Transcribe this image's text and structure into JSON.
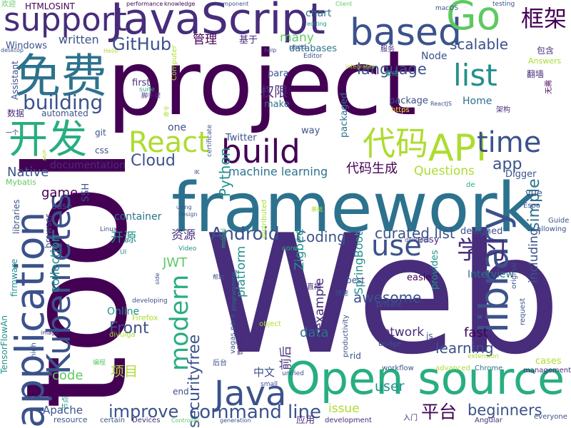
{
  "palette": {
    "c1": "#440154",
    "c2": "#472d7b",
    "c3": "#3b528b",
    "c4": "#2c728e",
    "c5": "#21918c",
    "c6": "#28ae80",
    "c7": "#5ec962",
    "c8": "#addc30",
    "c9": "#fde725"
  },
  "words": [
    {
      "text": "project",
      "color": "c1"
    },
    {
      "text": "Web",
      "color": "c2"
    },
    {
      "text": "framework",
      "color": "c4"
    },
    {
      "text": "tool",
      "color": "c1"
    },
    {
      "text": "JavaScript",
      "color": "c2"
    },
    {
      "text": "application",
      "color": "c3"
    },
    {
      "text": "Open source",
      "color": "c6"
    },
    {
      "text": "Kubernetes",
      "color": "c3"
    },
    {
      "text": "based",
      "color": "c3"
    },
    {
      "text": "library",
      "color": "c3"
    },
    {
      "text": "免费",
      "color": "c4"
    },
    {
      "text": "开发",
      "color": "c6"
    },
    {
      "text": "support",
      "color": "c2"
    },
    {
      "text": "Go",
      "color": "c7"
    },
    {
      "text": "build",
      "color": "c1"
    },
    {
      "text": "API",
      "color": "c8"
    },
    {
      "text": "Java",
      "color": "c3"
    },
    {
      "text": "list",
      "color": "c5"
    },
    {
      "text": "代码",
      "color": "c8"
    },
    {
      "text": "time",
      "color": "c3"
    },
    {
      "text": "React",
      "color": "c8"
    },
    {
      "text": "use",
      "color": "c3"
    },
    {
      "text": "modern",
      "color": "c6"
    },
    {
      "text": "框架",
      "color": "c1"
    },
    {
      "text": "学习",
      "color": "c2"
    },
    {
      "text": "GitHub",
      "color": "c3"
    },
    {
      "text": "building",
      "color": "c3"
    },
    {
      "text": "Android",
      "color": "c3"
    },
    {
      "text": "securityfree",
      "color": "c3"
    },
    {
      "text": "simple",
      "color": "c4"
    },
    {
      "text": "command line",
      "color": "c3"
    },
    {
      "text": "improve",
      "color": "c3"
    },
    {
      "text": "平台",
      "color": "c1"
    },
    {
      "text": "language",
      "color": "c3"
    },
    {
      "text": "Cloud",
      "color": "c3"
    },
    {
      "text": "Front",
      "color": "c3"
    },
    {
      "text": "app",
      "color": "c3"
    },
    {
      "text": "beginners",
      "color": "c3"
    },
    {
      "text": "curated list",
      "color": "c3"
    },
    {
      "text": "awesome",
      "color": "c3"
    },
    {
      "text": "Coding",
      "color": "c3"
    },
    {
      "text": "Native",
      "color": "c3"
    },
    {
      "text": "learning",
      "color": "c3"
    },
    {
      "text": "scalable",
      "color": "c3"
    },
    {
      "text": "written",
      "color": "c3"
    },
    {
      "text": "Python",
      "color": "c5"
    },
    {
      "text": "SpringBoot",
      "color": "c5"
    },
    {
      "text": "代码生成",
      "color": "c1"
    },
    {
      "text": "Questions",
      "color": "c8"
    },
    {
      "text": "game",
      "color": "c1"
    },
    {
      "text": "machine learning",
      "color": "c4"
    },
    {
      "text": "data",
      "color": "c4"
    },
    {
      "text": "fast",
      "color": "c1"
    },
    {
      "text": "network",
      "color": "c2"
    },
    {
      "text": "example",
      "color": "c2"
    },
    {
      "text": "collection",
      "color": "c5"
    },
    {
      "text": "platform",
      "color": "c5"
    },
    {
      "text": "including",
      "color": "c3"
    },
    {
      "text": "项目",
      "color": "c8"
    },
    {
      "text": "user",
      "color": "c5"
    },
    {
      "text": "前后",
      "color": "c2"
    },
    {
      "text": "权限",
      "color": "c2"
    },
    {
      "text": "资源",
      "color": "c2"
    },
    {
      "text": "Zigbee",
      "color": "c5"
    },
    {
      "text": "code",
      "color": "c7"
    },
    {
      "text": "many",
      "color": "c7"
    },
    {
      "text": "管理",
      "color": "c1"
    },
    {
      "text": "JWT",
      "color": "c7"
    },
    {
      "text": "issue",
      "color": "c8"
    },
    {
      "text": "开源",
      "color": "c5"
    },
    {
      "text": "Apache",
      "color": "c3"
    },
    {
      "text": "documentation",
      "color": "c2"
    },
    {
      "text": "one",
      "color": "c3"
    },
    {
      "text": "container",
      "color": "c4"
    },
    {
      "text": "databases",
      "color": "c4"
    },
    {
      "text": "中文",
      "color": "c3"
    },
    {
      "text": "Online",
      "color": "c5"
    },
    {
      "text": "Interview",
      "color": "c4"
    },
    {
      "text": "designed",
      "color": "c3"
    },
    {
      "text": "easier",
      "color": "c1"
    },
    {
      "text": "provides",
      "color": "c5"
    },
    {
      "text": "cases",
      "color": "c8"
    },
    {
      "text": "Home",
      "color": "c4"
    },
    {
      "text": "vue",
      "color": "c3"
    },
    {
      "text": "Twitter",
      "color": "c3"
    },
    {
      "text": "packaged",
      "color": "c4"
    },
    {
      "text": "way",
      "color": "c3"
    },
    {
      "text": "make",
      "color": "c4"
    },
    {
      "text": "first",
      "color": "c2"
    },
    {
      "text": "para",
      "color": "c3"
    },
    {
      "text": "基于",
      "color": "c2"
    },
    {
      "text": "chart",
      "color": "c4"
    },
    {
      "text": "Node",
      "color": "c3"
    },
    {
      "text": "package",
      "color": "c3"
    },
    {
      "text": "Digger",
      "color": "c3"
    },
    {
      "text": "SSH",
      "color": "c3"
    },
    {
      "text": "Windows",
      "color": "c3"
    },
    {
      "text": "HTMLOSINT",
      "color": "c1"
    },
    {
      "text": "数据",
      "color": "c2"
    },
    {
      "text": "automated",
      "color": "c3"
    },
    {
      "text": "git",
      "color": "c3"
    },
    {
      "text": "css",
      "color": "c3"
    },
    {
      "text": "Mybatis",
      "color": "c7"
    },
    {
      "text": "base",
      "color": "c3"
    },
    {
      "text": "libraries",
      "color": "c3"
    },
    {
      "text": "browser",
      "color": "c3"
    },
    {
      "text": "firmware",
      "color": "c5"
    },
    {
      "text": "TensorFlowAn",
      "color": "c5"
    },
    {
      "text": "resource",
      "color": "c3"
    },
    {
      "text": "end",
      "color": "c3"
    },
    {
      "text": "certain",
      "color": "c3"
    },
    {
      "text": "Devices",
      "color": "c2"
    },
    {
      "text": "Chrome",
      "color": "c4"
    },
    {
      "text": "development",
      "color": "c2"
    },
    {
      "text": "Angular",
      "color": "c2"
    },
    {
      "text": "js",
      "color": "c3"
    },
    {
      "text": "rid",
      "color": "c3"
    },
    {
      "text": "best",
      "color": "c3"
    },
    {
      "text": "应用",
      "color": "c2"
    },
    {
      "text": "Guide",
      "color": "c3"
    },
    {
      "text": "allowing",
      "color": "c3"
    },
    {
      "text": "original",
      "color": "c3"
    },
    {
      "text": "request",
      "color": "c3"
    },
    {
      "text": "Answers",
      "color": "c8"
    },
    {
      "text": "包含",
      "color": "c2"
    },
    {
      "text": "翻墙",
      "color": "c2"
    },
    {
      "text": "无需",
      "color": "c1"
    },
    {
      "text": "架构",
      "color": "c2"
    },
    {
      "text": "easy",
      "color": "c2"
    },
    {
      "text": "private",
      "color": "c3"
    },
    {
      "text": "Assistant",
      "color": "c3"
    },
    {
      "text": "Linux",
      "color": "c3"
    },
    {
      "text": "Firefox",
      "color": "c8"
    },
    {
      "text": "distributed",
      "color": "c8"
    },
    {
      "text": "vagas para",
      "color": "c3"
    },
    {
      "text": "Computer",
      "color": "c8"
    },
    {
      "text": "suite",
      "color": "c6"
    },
    {
      "text": "core",
      "color": "c6"
    },
    {
      "text": "https",
      "color": "c9"
    },
    {
      "text": "certificate",
      "color": "c3"
    },
    {
      "text": "Espa",
      "color": "c3"
    },
    {
      "text": "de",
      "color": "c6"
    },
    {
      "text": "IK",
      "color": "c3"
    },
    {
      "text": "model",
      "color": "c6"
    },
    {
      "text": "developing",
      "color": "c3"
    },
    {
      "text": "unified",
      "color": "c3"
    },
    {
      "text": "side",
      "color": "c3"
    },
    {
      "text": "Video",
      "color": "c5"
    },
    {
      "text": "UI",
      "color": "c5"
    },
    {
      "text": "high",
      "color": "c3"
    },
    {
      "text": "Editor",
      "color": "c3"
    },
    {
      "text": "used",
      "color": "c3"
    },
    {
      "text": "workflow",
      "color": "c3"
    },
    {
      "text": "advanced",
      "color": "c8"
    },
    {
      "text": "small",
      "color": "c3"
    },
    {
      "text": "productivity",
      "color": "c3"
    },
    {
      "text": "bridge",
      "color": "c3"
    },
    {
      "text": "extension",
      "color": "c8"
    },
    {
      "text": "management",
      "color": "c2"
    },
    {
      "text": "everyone",
      "color": "c3"
    },
    {
      "text": "generation",
      "color": "c3"
    },
    {
      "text": "Controller",
      "color": "c7"
    },
    {
      "text": "image",
      "color": "c2"
    },
    {
      "text": "divulga",
      "color": "c8"
    },
    {
      "text": "object",
      "color": "c8"
    },
    {
      "text": "integrates",
      "color": "c8"
    },
    {
      "text": "editing",
      "color": "c5"
    },
    {
      "text": "programming",
      "color": "c4"
    },
    {
      "text": "ReactJS",
      "color": "c3"
    },
    {
      "text": "using",
      "color": "c3"
    },
    {
      "text": "design",
      "color": "c3"
    },
    {
      "text": "Hello",
      "color": "c8"
    },
    {
      "text": "help",
      "color": "c3"
    },
    {
      "text": "desktop",
      "color": "c3"
    },
    {
      "text": "performance",
      "color": "c1"
    },
    {
      "text": "knowledge",
      "color": "c1"
    },
    {
      "text": "component",
      "color": "c3"
    },
    {
      "text": "Client",
      "color": "c7"
    },
    {
      "text": "testing",
      "color": "c3"
    },
    {
      "text": "macOS",
      "color": "c3"
    },
    {
      "text": "delicious",
      "color": "c3"
    },
    {
      "text": "MVP",
      "color": "c8"
    },
    {
      "text": "欢迎",
      "color": "c7"
    },
    {
      "text": "脚手架",
      "color": "c2"
    },
    {
      "text": "一个",
      "color": "c2"
    },
    {
      "text": "集成",
      "color": "c5"
    },
    {
      "text": "服务",
      "color": "c2"
    },
    {
      "text": "帮助",
      "color": "c3"
    },
    {
      "text": "直播",
      "color": "c2"
    },
    {
      "text": "快速",
      "color": "c3"
    },
    {
      "text": "后台",
      "color": "c3"
    },
    {
      "text": "入门",
      "color": "c2"
    },
    {
      "text": "编程",
      "color": "c7"
    },
    {
      "text": "节点",
      "color": "c5"
    },
    {
      "text": "管理系统",
      "color": "c2"
    },
    {
      "text": "基础",
      "color": "c8"
    },
    {
      "text": "命令",
      "color": "c8"
    }
  ]
}
